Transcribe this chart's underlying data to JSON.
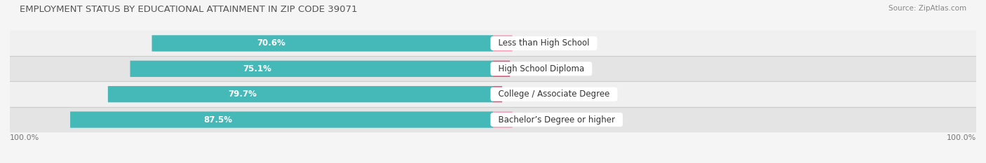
{
  "title": "EMPLOYMENT STATUS BY EDUCATIONAL ATTAINMENT IN ZIP CODE 39071",
  "source": "Source: ZipAtlas.com",
  "categories": [
    "Less than High School",
    "High School Diploma",
    "College / Associate Degree",
    "Bachelor’s Degree or higher"
  ],
  "labor_force": [
    70.6,
    75.1,
    79.7,
    87.5
  ],
  "unemployed": [
    0.0,
    3.5,
    1.9,
    0.0
  ],
  "labor_force_color": "#45b8b8",
  "unemployed_color_high": "#e8507a",
  "unemployed_color_low": "#f5a0b8",
  "row_bg_light": "#f0f0f0",
  "row_bg_dark": "#e4e4e4",
  "separator_color": "#cccccc",
  "title_color": "#555555",
  "source_color": "#888888",
  "label_color": "#555555",
  "value_color_white": "#ffffff",
  "value_color_dark": "#666666",
  "axis_label": "100.0%",
  "title_fontsize": 9.5,
  "label_fontsize": 8.5,
  "cat_fontsize": 8.5,
  "tick_fontsize": 8.0,
  "max_scale": 100.0,
  "bar_height": 0.62,
  "min_unemp_display": 4.0,
  "unemployed_display": [
    4.0,
    3.5,
    1.9,
    4.0
  ]
}
